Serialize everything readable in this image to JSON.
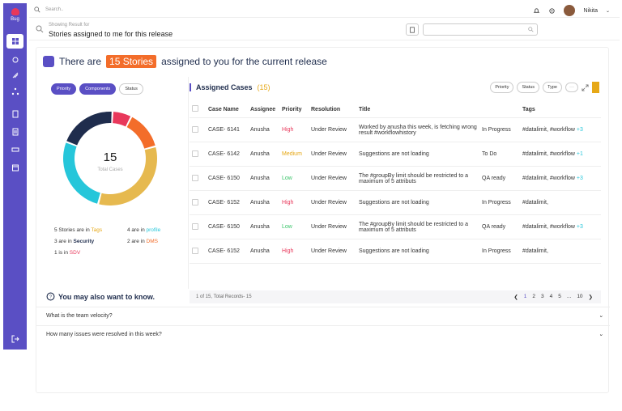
{
  "sidebar": {
    "logo_text": "Bug"
  },
  "topbar": {
    "search_placeholder": "Search..",
    "user_name": "Nikita"
  },
  "results": {
    "sub": "Showing Result for",
    "title": "Stories assigned to me for this release"
  },
  "hero": {
    "prefix": "There are",
    "badge": "15 Stories",
    "suffix": "assigned to you for the current release"
  },
  "filters": {
    "chips": [
      "Priority",
      "Components",
      "Status"
    ]
  },
  "donut": {
    "total": "15",
    "label": "Total Cases",
    "segments": [
      {
        "name": "Tags",
        "value": 5,
        "color": "#e6b94f"
      },
      {
        "name": "profile",
        "value": 4,
        "color": "#26c6da"
      },
      {
        "name": "Security",
        "value": 3,
        "color": "#1f2d4d"
      },
      {
        "name": "SDV",
        "value": 1,
        "color": "#e8385b"
      },
      {
        "name": "DMS",
        "value": 2,
        "color": "#f36d2a"
      }
    ]
  },
  "stats": {
    "s1a": "5 Stories are in",
    "s1b": "Tags",
    "s2a": "4 are in",
    "s2b": "profile",
    "s3a": "3 are in",
    "s3b": "Security",
    "s4a": "2 are in",
    "s4b": "DMS",
    "s5a": "1 is in",
    "s5b": "SDV"
  },
  "table": {
    "title": "Assigned Cases",
    "count": "(15)",
    "actions": [
      "Priority",
      "Status",
      "Type"
    ],
    "menu": "···",
    "headers": [
      "Case Name",
      "Assignee",
      "Priority",
      "Resolution",
      "Title",
      "",
      "Tags"
    ],
    "rows": [
      {
        "case": "CASE- 6141",
        "assignee": "Anusha",
        "priority": "High",
        "resolution": "Under Review",
        "title": "Worked by anusha this week, is fetching wrong result #workflowhistory",
        "status": "In Progress",
        "tags": "#datalimit, #workflow",
        "more": "+3"
      },
      {
        "case": "CASE- 6142",
        "assignee": "Anusha",
        "priority": "Medium",
        "resolution": "Under Review",
        "title": "Suggestions are not loading",
        "status": "To Do",
        "tags": "#datalimit, #workflow",
        "more": "+1"
      },
      {
        "case": "CASE- 6150",
        "assignee": "Anusha",
        "priority": "Low",
        "resolution": "Under Review",
        "title": "The #groupBy limit should be restricted to a maximum of 5 attributs",
        "status": "QA ready",
        "tags": "#datalimit, #workflow",
        "more": "+3"
      },
      {
        "case": "CASE- 6152",
        "assignee": "Anusha",
        "priority": "High",
        "resolution": "Under Review",
        "title": "Suggestions are not loading",
        "status": "In Progress",
        "tags": "#datalimit,",
        "more": ""
      },
      {
        "case": "CASE- 6150",
        "assignee": "Anusha",
        "priority": "Low",
        "resolution": "Under Review",
        "title": "The #groupBy limit should be restricted to a maximum of 5 attributs",
        "status": "QA ready",
        "tags": "#datalimit, #workflow",
        "more": "+3"
      },
      {
        "case": "CASE- 6152",
        "assignee": "Anusha",
        "priority": "High",
        "resolution": "Under Review",
        "title": "Suggestions are not loading",
        "status": "In Progress",
        "tags": "#datalimit,",
        "more": ""
      }
    ],
    "footer": "1 of 15, Total Records- 15",
    "pages": [
      "1",
      "2",
      "3",
      "4",
      "5",
      "...",
      "10"
    ]
  },
  "know": {
    "title": "You may also want to know.",
    "questions": [
      "What is the team velocity?",
      "How many issues were resolved in this week?"
    ]
  },
  "colors": {
    "accent": "#5a4fc4",
    "orange": "#f36d2a"
  }
}
